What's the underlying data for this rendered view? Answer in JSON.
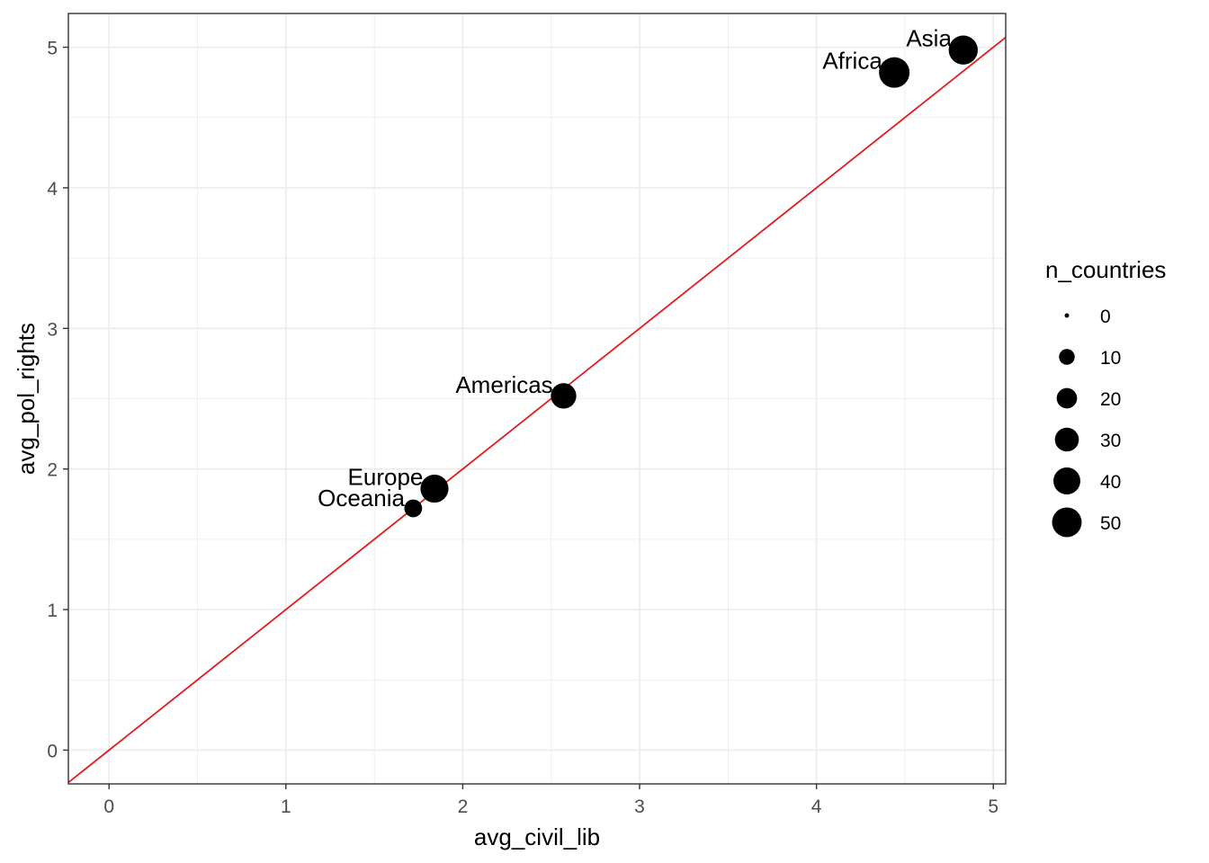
{
  "chart_data": {
    "type": "scatter",
    "xlabel": "avg_civil_lib",
    "ylabel": "avg_pol_rights",
    "xlim": [
      -0.23,
      5.07
    ],
    "ylim": [
      -0.24,
      5.24
    ],
    "xticks": [
      0,
      1,
      2,
      3,
      4,
      5
    ],
    "yticks": [
      0,
      1,
      2,
      3,
      4,
      5
    ],
    "grid": true,
    "reference_line": {
      "type": "identity",
      "slope": 1,
      "intercept": 0,
      "color": "#e41a1c"
    },
    "points": [
      {
        "label": "Africa",
        "x": 4.44,
        "y": 4.82,
        "n_countries": 54
      },
      {
        "label": "Americas",
        "x": 2.57,
        "y": 2.52,
        "n_countries": 35
      },
      {
        "label": "Asia",
        "x": 4.83,
        "y": 4.98,
        "n_countries": 48
      },
      {
        "label": "Europe",
        "x": 1.84,
        "y": 1.86,
        "n_countries": 44
      },
      {
        "label": "Oceania",
        "x": 1.72,
        "y": 1.72,
        "n_countries": 14
      }
    ],
    "legend": {
      "title": "n_countries",
      "placement": "right",
      "entries": [
        {
          "label": "0",
          "value": 0
        },
        {
          "label": "10",
          "value": 10
        },
        {
          "label": "20",
          "value": 20
        },
        {
          "label": "30",
          "value": 30
        },
        {
          "label": "40",
          "value": 40
        },
        {
          "label": "50",
          "value": 50
        }
      ]
    },
    "colors": {
      "points": "#000000",
      "line": "#e41a1c",
      "grid": "#ebebeb",
      "panel_border": "#333333"
    }
  }
}
